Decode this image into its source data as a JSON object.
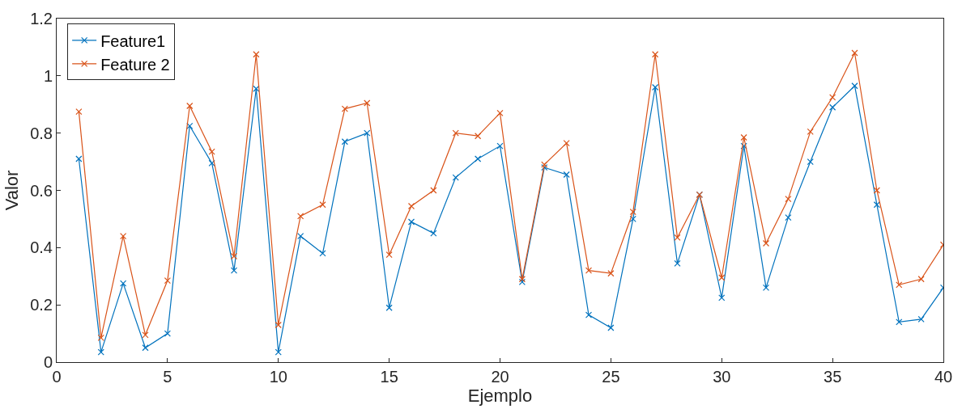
{
  "chart_data": {
    "type": "line",
    "xlabel": "Ejemplo",
    "ylabel": "Valor",
    "x": [
      1,
      2,
      3,
      4,
      5,
      6,
      7,
      8,
      9,
      10,
      11,
      12,
      13,
      14,
      15,
      16,
      17,
      18,
      19,
      20,
      21,
      22,
      23,
      24,
      25,
      26,
      27,
      28,
      29,
      30,
      31,
      32,
      33,
      34,
      35,
      36,
      37,
      38,
      39,
      40
    ],
    "series": [
      {
        "name": "Feature1",
        "color": "#0072bd",
        "values": [
          0.71,
          0.035,
          0.275,
          0.05,
          0.1,
          0.825,
          0.695,
          0.32,
          0.955,
          0.035,
          0.44,
          0.38,
          0.77,
          0.8,
          0.19,
          0.49,
          0.45,
          0.645,
          0.71,
          0.755,
          0.28,
          0.68,
          0.655,
          0.165,
          0.12,
          0.5,
          0.96,
          0.345,
          0.585,
          0.225,
          0.755,
          0.26,
          0.505,
          0.7,
          0.89,
          0.965,
          0.55,
          0.14,
          0.15,
          0.26
        ]
      },
      {
        "name": "Feature 2",
        "color": "#d95319",
        "values": [
          0.875,
          0.085,
          0.44,
          0.095,
          0.285,
          0.895,
          0.735,
          0.37,
          1.075,
          0.13,
          0.51,
          0.55,
          0.885,
          0.905,
          0.375,
          0.545,
          0.6,
          0.8,
          0.79,
          0.87,
          0.29,
          0.69,
          0.765,
          0.32,
          0.31,
          0.525,
          1.075,
          0.435,
          0.585,
          0.295,
          0.785,
          0.415,
          0.57,
          0.805,
          0.925,
          1.08,
          0.6,
          0.27,
          0.29,
          0.41
        ]
      }
    ],
    "xlim": [
      0,
      40
    ],
    "xticks": [
      0,
      5,
      10,
      15,
      20,
      25,
      30,
      35,
      40
    ],
    "ylim": [
      0,
      1.2
    ],
    "yticks": [
      0,
      0.2,
      0.4,
      0.6,
      0.8,
      1,
      1.2
    ],
    "legend": "top left",
    "marker": "cross",
    "line_style": "solid"
  }
}
